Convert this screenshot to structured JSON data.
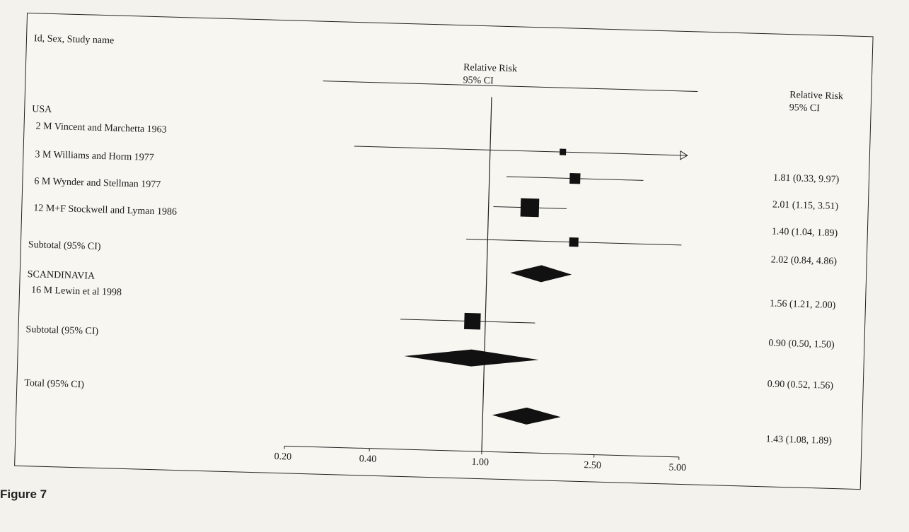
{
  "header": {
    "left_title": "Id, Sex, Study name",
    "center_title_line1": "Relative Risk",
    "center_title_line2": "95% CI",
    "right_title_line1": "Relative Risk",
    "right_title_line2": "95% CI"
  },
  "caption": "Figure 7",
  "chart_data": {
    "type": "forest",
    "x_scale": "log",
    "x_ticks": [
      0.2,
      0.4,
      1.0,
      2.5,
      5.0
    ],
    "x_tick_labels": [
      "0.20",
      "0.40",
      "1.00",
      "2.50",
      "5.00"
    ],
    "reference_line": 1.0,
    "rows": [
      {
        "label": "USA",
        "kind": "group"
      },
      {
        "label": "2 M Vincent and Marchetta 1963",
        "kind": "study",
        "rr": 1.81,
        "lo": 0.33,
        "hi": 9.97,
        "weight": 0.15,
        "ci_text": "1.81 (0.33, 9.97)",
        "arrow_hi": true
      },
      {
        "label": "3 M Williams and Horm 1977",
        "kind": "study",
        "rr": 2.01,
        "lo": 1.15,
        "hi": 3.51,
        "weight": 0.45,
        "ci_text": "2.01 (1.15, 3.51)"
      },
      {
        "label": "6 M Wynder and Stellman 1977",
        "kind": "study",
        "rr": 1.4,
        "lo": 1.04,
        "hi": 1.89,
        "weight": 1.0,
        "ci_text": "1.40 (1.04, 1.89)"
      },
      {
        "label": "12 M+F Stockwell and Lyman 1986",
        "kind": "study",
        "rr": 2.02,
        "lo": 0.84,
        "hi": 4.86,
        "weight": 0.35,
        "ci_text": "2.02 (0.84, 4.86)"
      },
      {
        "label": "Subtotal (95% CI)",
        "kind": "subtotal",
        "rr": 1.56,
        "lo": 1.21,
        "hi": 2.0,
        "ci_text": "1.56 (1.21, 2.00)"
      },
      {
        "label": "SCANDINAVIA",
        "kind": "group"
      },
      {
        "label": "16 M Lewin et al 1998",
        "kind": "study",
        "rr": 0.9,
        "lo": 0.5,
        "hi": 1.5,
        "weight": 0.85,
        "ci_text": "0.90 (0.50, 1.50)"
      },
      {
        "label": "Subtotal (95% CI)",
        "kind": "subtotal",
        "rr": 0.9,
        "lo": 0.52,
        "hi": 1.56,
        "ci_text": "0.90 (0.52, 1.56)"
      },
      {
        "label": "Total (95% CI)",
        "kind": "total",
        "rr": 1.43,
        "lo": 1.08,
        "hi": 1.89,
        "ci_text": "1.43 (1.08, 1.89)"
      }
    ]
  }
}
